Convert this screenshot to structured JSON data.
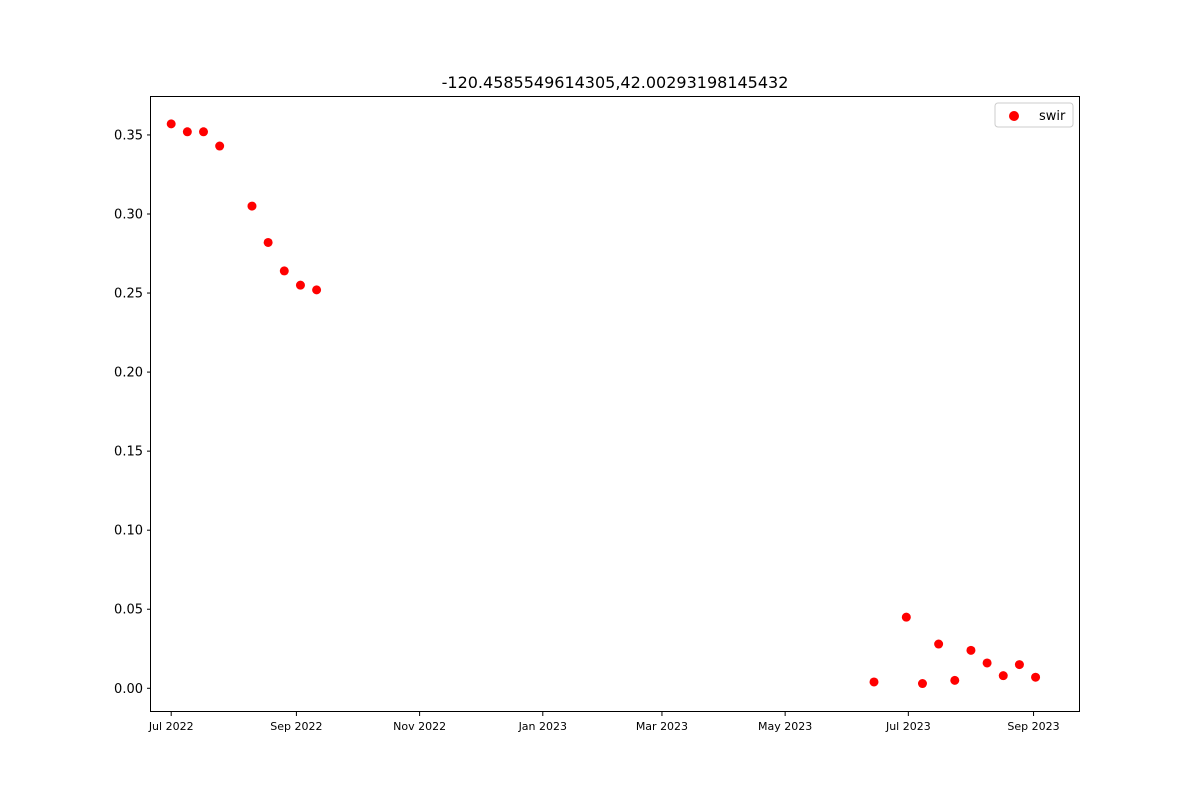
{
  "chart_data": {
    "type": "scatter",
    "title": "-120.4585549614305,42.00293198145432",
    "xlabel": "",
    "ylabel": "",
    "x_axis": "date",
    "xlim": [
      "2022-06-21",
      "2023-09-24"
    ],
    "ylim": [
      -0.015,
      0.374
    ],
    "grid": false,
    "legend_placement": "top-right",
    "yticks": [
      0.0,
      0.05,
      0.1,
      0.15,
      0.2,
      0.25,
      0.3,
      0.35
    ],
    "ytick_labels": [
      "0.00",
      "0.05",
      "0.10",
      "0.15",
      "0.20",
      "0.25",
      "0.30",
      "0.35"
    ],
    "xticks": [
      "2022-07-01",
      "2022-09-01",
      "2022-11-01",
      "2023-01-01",
      "2023-03-01",
      "2023-05-01",
      "2023-07-01",
      "2023-09-01"
    ],
    "xtick_labels": [
      "Jul 2022",
      "Sep 2022",
      "Nov 2022",
      "Jan 2023",
      "Mar 2023",
      "May 2023",
      "Jul 2023",
      "Sep 2023"
    ],
    "series": [
      {
        "name": "swir",
        "color": "#ff0000",
        "points": [
          {
            "x": "2022-07-01",
            "y": 0.357
          },
          {
            "x": "2022-07-09",
            "y": 0.352
          },
          {
            "x": "2022-07-17",
            "y": 0.352
          },
          {
            "x": "2022-07-25",
            "y": 0.343
          },
          {
            "x": "2022-08-10",
            "y": 0.305
          },
          {
            "x": "2022-08-18",
            "y": 0.282
          },
          {
            "x": "2022-08-26",
            "y": 0.264
          },
          {
            "x": "2022-09-03",
            "y": 0.255
          },
          {
            "x": "2022-09-11",
            "y": 0.252
          },
          {
            "x": "2023-06-14",
            "y": 0.004
          },
          {
            "x": "2023-06-30",
            "y": 0.045
          },
          {
            "x": "2023-07-08",
            "y": 0.003
          },
          {
            "x": "2023-07-16",
            "y": 0.028
          },
          {
            "x": "2023-07-24",
            "y": 0.005
          },
          {
            "x": "2023-08-01",
            "y": 0.024
          },
          {
            "x": "2023-08-09",
            "y": 0.016
          },
          {
            "x": "2023-08-17",
            "y": 0.008
          },
          {
            "x": "2023-08-25",
            "y": 0.015
          },
          {
            "x": "2023-09-02",
            "y": 0.007
          }
        ]
      }
    ]
  }
}
